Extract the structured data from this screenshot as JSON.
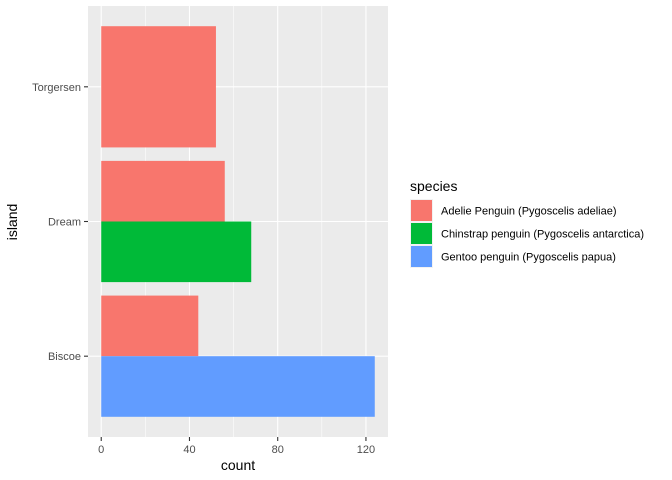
{
  "chart_data": {
    "type": "bar",
    "orientation": "horizontal",
    "position": "dodge",
    "title": "",
    "xlabel": "count",
    "ylabel": "island",
    "xlim": [
      -6,
      130
    ],
    "x_ticks": [
      0,
      40,
      80,
      120
    ],
    "x_minor_ticks": [
      20,
      60,
      100
    ],
    "categories": [
      "Biscoe",
      "Dream",
      "Torgersen"
    ],
    "series": [
      {
        "name": "Adelie Penguin (Pygoscelis adeliae)",
        "color": "#F8766D",
        "values": [
          44,
          56,
          52
        ]
      },
      {
        "name": "Chinstrap penguin (Pygoscelis antarctica)",
        "color": "#00BA38",
        "values": [
          null,
          68,
          null
        ]
      },
      {
        "name": "Gentoo penguin (Pygoscelis papua)",
        "color": "#619CFF",
        "values": [
          124,
          null,
          null
        ]
      }
    ],
    "legend_title": "species",
    "legend_position": "right",
    "grid": true,
    "panel_background": "#EBEBEB",
    "grid_color": "#FFFFFF"
  }
}
